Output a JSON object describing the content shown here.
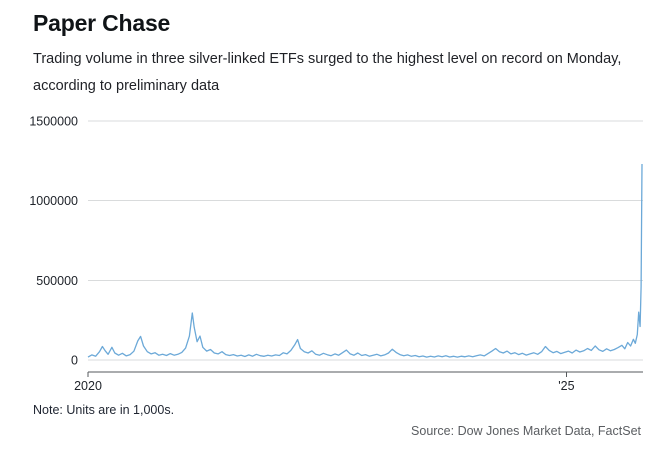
{
  "header": {
    "title": "Paper Chase",
    "subtitle": "Trading volume in three silver-linked ETFs surged to the highest level on record on Monday, according to preliminary data"
  },
  "footer": {
    "note": "Note: Units are in 1,000s.",
    "source": "Source: Dow Jones Market Data, FactSet"
  },
  "chart_data": {
    "type": "line",
    "title": "Paper Chase",
    "xlabel": "",
    "ylabel": "",
    "units_note": "Units are in 1,000s",
    "grid": "horizontal",
    "legend": "none",
    "line_color": "#6ca9d8",
    "xlim": [
      2020.0,
      2025.8
    ],
    "ylim": [
      0,
      1500000
    ],
    "y_ticks": [
      0,
      500000,
      1000000,
      1500000
    ],
    "x_ticks": [
      {
        "value": 2020,
        "label": "2020"
      },
      {
        "value": 2025,
        "label": "'25"
      }
    ],
    "series": [
      {
        "name": "Trading volume in three silver-linked ETFs",
        "color": "#6ca9d8",
        "points": [
          [
            2020.0,
            18000
          ],
          [
            2020.04,
            32000
          ],
          [
            2020.08,
            24000
          ],
          [
            2020.12,
            52000
          ],
          [
            2020.15,
            85000
          ],
          [
            2020.18,
            58000
          ],
          [
            2020.21,
            36000
          ],
          [
            2020.25,
            80000
          ],
          [
            2020.28,
            44000
          ],
          [
            2020.32,
            30000
          ],
          [
            2020.36,
            42000
          ],
          [
            2020.4,
            26000
          ],
          [
            2020.44,
            34000
          ],
          [
            2020.48,
            55000
          ],
          [
            2020.52,
            120000
          ],
          [
            2020.55,
            148000
          ],
          [
            2020.58,
            88000
          ],
          [
            2020.62,
            52000
          ],
          [
            2020.66,
            38000
          ],
          [
            2020.7,
            46000
          ],
          [
            2020.74,
            30000
          ],
          [
            2020.78,
            36000
          ],
          [
            2020.82,
            28000
          ],
          [
            2020.86,
            40000
          ],
          [
            2020.9,
            30000
          ],
          [
            2020.94,
            36000
          ],
          [
            2020.98,
            48000
          ],
          [
            2021.02,
            75000
          ],
          [
            2021.06,
            150000
          ],
          [
            2021.09,
            295000
          ],
          [
            2021.11,
            205000
          ],
          [
            2021.14,
            115000
          ],
          [
            2021.17,
            150000
          ],
          [
            2021.2,
            80000
          ],
          [
            2021.24,
            56000
          ],
          [
            2021.28,
            66000
          ],
          [
            2021.32,
            44000
          ],
          [
            2021.36,
            38000
          ],
          [
            2021.4,
            52000
          ],
          [
            2021.44,
            34000
          ],
          [
            2021.48,
            28000
          ],
          [
            2021.52,
            34000
          ],
          [
            2021.56,
            25000
          ],
          [
            2021.6,
            30000
          ],
          [
            2021.64,
            22000
          ],
          [
            2021.68,
            32000
          ],
          [
            2021.72,
            24000
          ],
          [
            2021.76,
            36000
          ],
          [
            2021.8,
            27000
          ],
          [
            2021.84,
            23000
          ],
          [
            2021.88,
            30000
          ],
          [
            2021.92,
            25000
          ],
          [
            2021.96,
            32000
          ],
          [
            2022.0,
            28000
          ],
          [
            2022.04,
            45000
          ],
          [
            2022.08,
            38000
          ],
          [
            2022.12,
            60000
          ],
          [
            2022.16,
            95000
          ],
          [
            2022.19,
            128000
          ],
          [
            2022.22,
            72000
          ],
          [
            2022.26,
            52000
          ],
          [
            2022.3,
            44000
          ],
          [
            2022.34,
            58000
          ],
          [
            2022.38,
            36000
          ],
          [
            2022.42,
            30000
          ],
          [
            2022.46,
            42000
          ],
          [
            2022.5,
            33000
          ],
          [
            2022.54,
            27000
          ],
          [
            2022.58,
            38000
          ],
          [
            2022.62,
            30000
          ],
          [
            2022.66,
            46000
          ],
          [
            2022.7,
            62000
          ],
          [
            2022.74,
            38000
          ],
          [
            2022.78,
            30000
          ],
          [
            2022.82,
            44000
          ],
          [
            2022.86,
            28000
          ],
          [
            2022.9,
            34000
          ],
          [
            2022.94,
            24000
          ],
          [
            2022.98,
            30000
          ],
          [
            2023.02,
            36000
          ],
          [
            2023.06,
            26000
          ],
          [
            2023.1,
            32000
          ],
          [
            2023.14,
            44000
          ],
          [
            2023.18,
            68000
          ],
          [
            2023.22,
            48000
          ],
          [
            2023.26,
            34000
          ],
          [
            2023.3,
            27000
          ],
          [
            2023.34,
            32000
          ],
          [
            2023.38,
            23000
          ],
          [
            2023.42,
            28000
          ],
          [
            2023.46,
            20000
          ],
          [
            2023.5,
            25000
          ],
          [
            2023.54,
            18000
          ],
          [
            2023.58,
            24000
          ],
          [
            2023.62,
            19000
          ],
          [
            2023.66,
            26000
          ],
          [
            2023.7,
            21000
          ],
          [
            2023.74,
            27000
          ],
          [
            2023.78,
            19000
          ],
          [
            2023.82,
            23000
          ],
          [
            2023.86,
            18000
          ],
          [
            2023.9,
            24000
          ],
          [
            2023.94,
            20000
          ],
          [
            2023.98,
            26000
          ],
          [
            2024.02,
            21000
          ],
          [
            2024.06,
            27000
          ],
          [
            2024.1,
            32000
          ],
          [
            2024.14,
            26000
          ],
          [
            2024.18,
            40000
          ],
          [
            2024.22,
            55000
          ],
          [
            2024.26,
            72000
          ],
          [
            2024.3,
            52000
          ],
          [
            2024.34,
            44000
          ],
          [
            2024.38,
            56000
          ],
          [
            2024.42,
            38000
          ],
          [
            2024.46,
            46000
          ],
          [
            2024.5,
            34000
          ],
          [
            2024.54,
            42000
          ],
          [
            2024.58,
            31000
          ],
          [
            2024.62,
            38000
          ],
          [
            2024.66,
            45000
          ],
          [
            2024.7,
            36000
          ],
          [
            2024.74,
            52000
          ],
          [
            2024.78,
            85000
          ],
          [
            2024.82,
            60000
          ],
          [
            2024.86,
            46000
          ],
          [
            2024.9,
            54000
          ],
          [
            2024.94,
            40000
          ],
          [
            2024.98,
            48000
          ],
          [
            2025.02,
            56000
          ],
          [
            2025.06,
            44000
          ],
          [
            2025.1,
            62000
          ],
          [
            2025.14,
            50000
          ],
          [
            2025.18,
            58000
          ],
          [
            2025.22,
            72000
          ],
          [
            2025.26,
            60000
          ],
          [
            2025.3,
            88000
          ],
          [
            2025.34,
            64000
          ],
          [
            2025.38,
            54000
          ],
          [
            2025.42,
            70000
          ],
          [
            2025.46,
            58000
          ],
          [
            2025.5,
            66000
          ],
          [
            2025.54,
            78000
          ],
          [
            2025.58,
            92000
          ],
          [
            2025.61,
            70000
          ],
          [
            2025.64,
            110000
          ],
          [
            2025.67,
            88000
          ],
          [
            2025.7,
            130000
          ],
          [
            2025.72,
            105000
          ],
          [
            2025.74,
            160000
          ],
          [
            2025.755,
            300000
          ],
          [
            2025.77,
            210000
          ],
          [
            2025.78,
            460000
          ],
          [
            2025.79,
            1230000
          ]
        ]
      }
    ]
  }
}
